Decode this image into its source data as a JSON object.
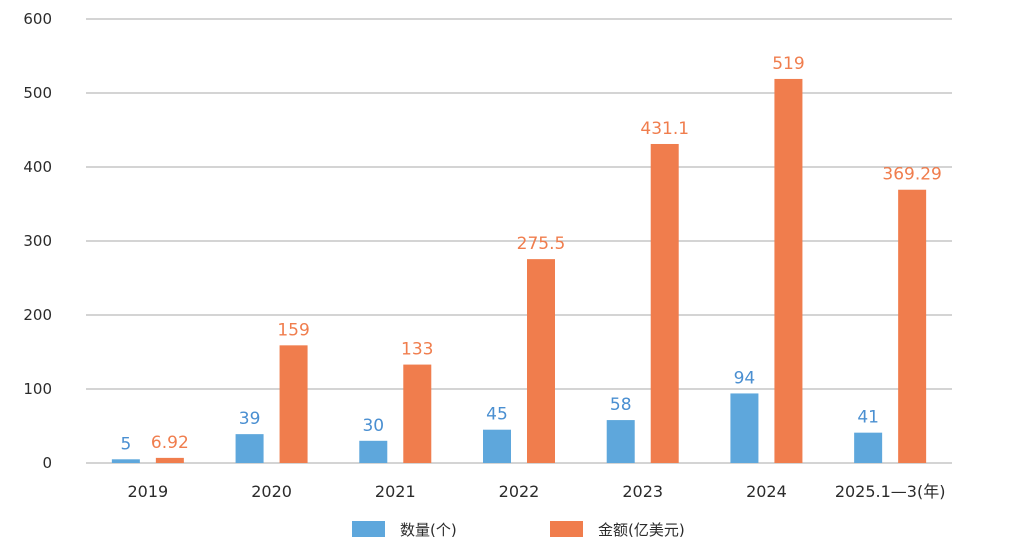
{
  "chart_data": {
    "type": "bar",
    "categories": [
      "2019",
      "2020",
      "2021",
      "2022",
      "2023",
      "2024",
      "2025.1—3(年)"
    ],
    "series": [
      {
        "name": "数量(个)",
        "values": [
          5,
          39,
          30,
          45,
          58,
          94,
          41
        ],
        "labels": [
          "5",
          "39",
          "30",
          "45",
          "58",
          "94",
          "41"
        ],
        "color": "#5ea7dc",
        "label_color": "#4a8fd1"
      },
      {
        "name": "金额(亿美元)",
        "values": [
          6.92,
          159,
          133,
          275.5,
          431.1,
          519,
          369.29
        ],
        "labels": [
          "6.92",
          "159",
          "133",
          "275.5",
          "431.1",
          "519",
          "369.29"
        ],
        "color": "#f07d4d",
        "label_color": "#f07d4d"
      }
    ],
    "yticks": [
      "0",
      "100",
      "200",
      "300",
      "400",
      "500",
      "600"
    ],
    "ylim": [
      0,
      600
    ],
    "grid": true,
    "legend": "bottom-center",
    "gridline_color": "#a8a8a8"
  }
}
